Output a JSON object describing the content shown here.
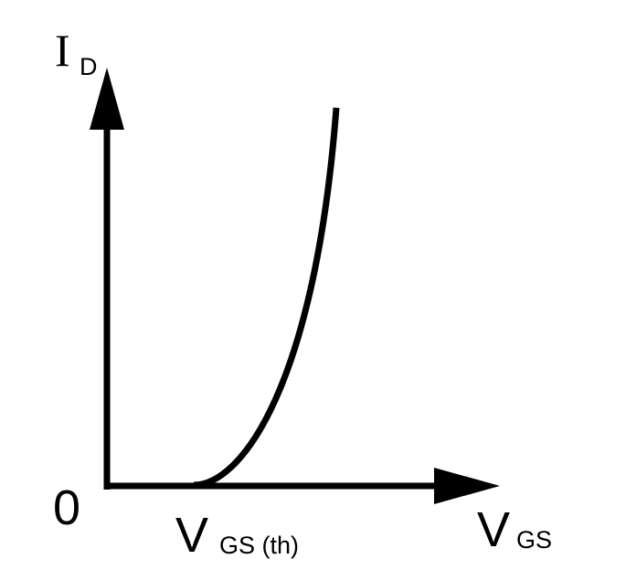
{
  "y_axis_label": {
    "main": "I",
    "subscript": "D"
  },
  "origin_label": "0",
  "threshold_label": {
    "main": "V",
    "subscript": "GS (th)"
  },
  "x_axis_label": {
    "main": "V",
    "subscript": "GS"
  }
}
